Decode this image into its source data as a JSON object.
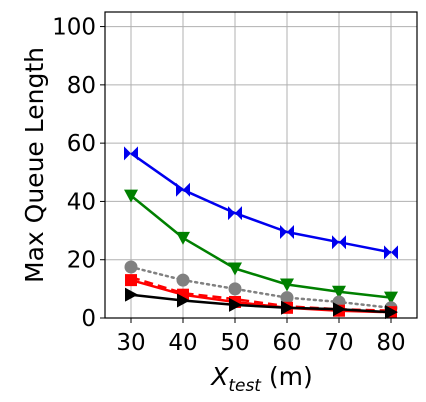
{
  "chart_data": {
    "type": "line",
    "title": "",
    "xlabel": "X",
    "xlabel_sub": "test",
    "xlabel_unit": " (m)",
    "ylabel": "Max Queue Length",
    "xlim": [
      25,
      85
    ],
    "ylim": [
      0,
      105
    ],
    "xticks": [
      30,
      40,
      50,
      60,
      70,
      80
    ],
    "yticks": [
      0,
      20,
      40,
      60,
      80,
      100
    ],
    "grid": true,
    "x": [
      30,
      40,
      50,
      60,
      70,
      80
    ],
    "series": [
      {
        "values": [
          56.5,
          44.0,
          36.0,
          29.5,
          26.0,
          22.5
        ],
        "color": "#0000ee",
        "marker": "bowtie",
        "dash": "solid"
      },
      {
        "values": [
          42.0,
          27.5,
          17.0,
          11.5,
          9.0,
          7.0
        ],
        "color": "#008000",
        "marker": "triangle-down",
        "dash": "solid"
      },
      {
        "values": [
          17.5,
          13.0,
          10.0,
          7.0,
          5.5,
          3.5
        ],
        "color": "#808080",
        "marker": "circle",
        "dash": "dotted"
      },
      {
        "values": [
          14.0,
          8.5,
          6.5,
          4.0,
          3.0,
          2.5
        ],
        "color": "#ff0000",
        "marker": "none",
        "dash": "dashed"
      },
      {
        "values": [
          13.0,
          8.0,
          5.5,
          3.5,
          2.5,
          2.0
        ],
        "color": "#ff0000",
        "marker": "square",
        "dash": "solid"
      },
      {
        "values": [
          8.0,
          6.0,
          4.5,
          3.5,
          3.0,
          2.0
        ],
        "color": "#000000",
        "marker": "triangle-right",
        "dash": "solid"
      }
    ]
  }
}
